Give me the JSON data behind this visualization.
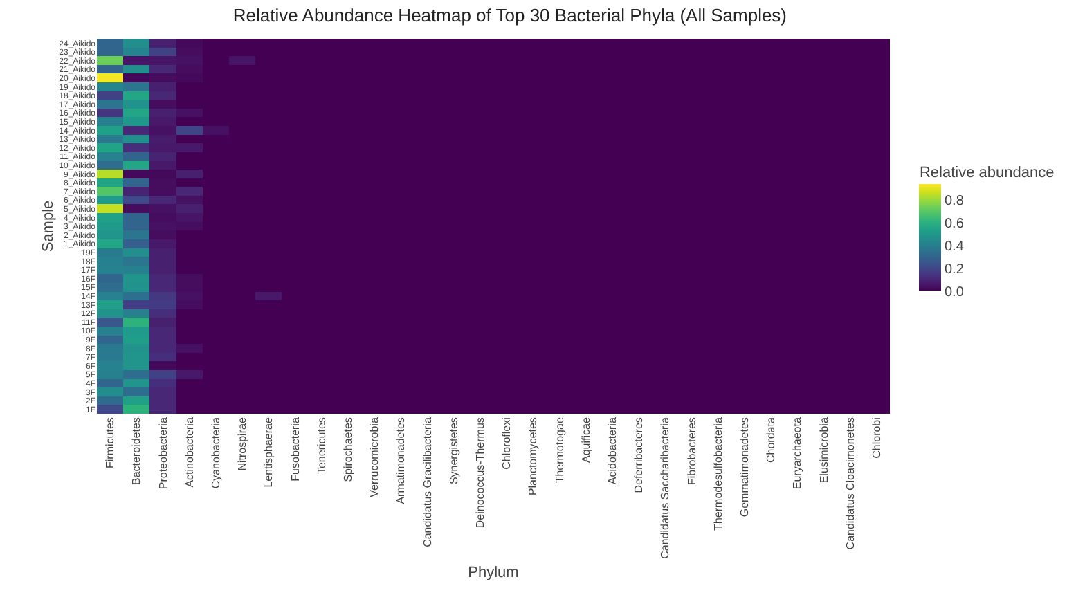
{
  "chart_data": {
    "type": "heatmap",
    "title": "Relative Abundance Heatmap of Top 30 Bacterial Phyla (All Samples)",
    "xlabel": "Phylum",
    "ylabel": "Sample",
    "clabel": "Relative abundance",
    "categories": [
      "Firmicutes",
      "Bacteroidetes",
      "Proteobacteria",
      "Actinobacteria",
      "Cyanobacteria",
      "Nitrospirae",
      "Lentisphaerae",
      "Fusobacteria",
      "Tenericutes",
      "Spirochaetes",
      "Verrucomicrobia",
      "Armatimonadetes",
      "Candidatus Gracilibacteria",
      "Synergistetes",
      "Deinococcus-Thermus",
      "Chloroflexi",
      "Planctomycetes",
      "Thermotogae",
      "Aquificae",
      "Acidobacteria",
      "Deferribacteres",
      "Candidatus Saccharibacteria",
      "Fibrobacteres",
      "Thermodesulfobacteria",
      "Gemmatimonadetes",
      "Chordata",
      "Euryarchaeota",
      "Elusimicrobia",
      "Candidatus Cloacimonetes",
      "Chlorobi"
    ],
    "y_categories": [
      "24_Aikido",
      "23_Aikido",
      "22_Aikido",
      "21_Aikido",
      "20_Aikido",
      "19_Aikido",
      "18_Aikido",
      "17_Aikido",
      "16_Aikido",
      "15_Aikido",
      "14_Aikido",
      "13_Aikido",
      "12_Aikido",
      "11_Aikido",
      "10_Aikido",
      "9_Aikido",
      "8_Aikido",
      "7_Aikido",
      "6_Aikido",
      "5_Aikido",
      "4_Aikido",
      "3_Aikido",
      "2_Aikido",
      "1_Aikido",
      "19F",
      "18F",
      "17F",
      "16F",
      "15F",
      "14F",
      "13F",
      "12F",
      "11F",
      "10F",
      "9F",
      "8F",
      "7F",
      "6F",
      "5F",
      "4F",
      "3F",
      "2F",
      "1F"
    ],
    "cells": [
      [
        0.3,
        0.46,
        0.08,
        0.02,
        0,
        0,
        0,
        0,
        0,
        0,
        0,
        0,
        0,
        0,
        0,
        0,
        0,
        0,
        0,
        0,
        0,
        0,
        0,
        0,
        0,
        0,
        0,
        0,
        0,
        0
      ],
      [
        0.3,
        0.42,
        0.18,
        0.03,
        0,
        0,
        0,
        0,
        0,
        0,
        0,
        0,
        0,
        0,
        0,
        0,
        0,
        0,
        0,
        0,
        0,
        0,
        0,
        0,
        0,
        0,
        0,
        0,
        0,
        0
      ],
      [
        0.72,
        0.05,
        0.05,
        0.04,
        0,
        0.05,
        0,
        0,
        0,
        0,
        0,
        0,
        0,
        0,
        0,
        0,
        0,
        0,
        0,
        0,
        0,
        0,
        0,
        0,
        0,
        0,
        0,
        0,
        0,
        0
      ],
      [
        0.3,
        0.46,
        0.1,
        0.03,
        0,
        0,
        0,
        0,
        0,
        0,
        0,
        0,
        0,
        0,
        0,
        0,
        0,
        0,
        0,
        0,
        0,
        0,
        0,
        0,
        0,
        0,
        0,
        0,
        0,
        0
      ],
      [
        0.92,
        0.02,
        0.03,
        0.02,
        0,
        0,
        0,
        0,
        0,
        0,
        0,
        0,
        0,
        0,
        0,
        0,
        0,
        0,
        0,
        0,
        0,
        0,
        0,
        0,
        0,
        0,
        0,
        0,
        0,
        0
      ],
      [
        0.42,
        0.36,
        0.08,
        0,
        0,
        0,
        0,
        0,
        0,
        0,
        0,
        0,
        0,
        0,
        0,
        0,
        0,
        0,
        0,
        0,
        0,
        0,
        0,
        0,
        0,
        0,
        0,
        0,
        0,
        0
      ],
      [
        0.18,
        0.55,
        0.1,
        0,
        0,
        0,
        0,
        0,
        0,
        0,
        0,
        0,
        0,
        0,
        0,
        0,
        0,
        0,
        0,
        0,
        0,
        0,
        0,
        0,
        0,
        0,
        0,
        0,
        0,
        0
      ],
      [
        0.36,
        0.47,
        0.03,
        0,
        0,
        0,
        0,
        0,
        0,
        0,
        0,
        0,
        0,
        0,
        0,
        0,
        0,
        0,
        0,
        0,
        0,
        0,
        0,
        0,
        0,
        0,
        0,
        0,
        0,
        0
      ],
      [
        0.14,
        0.55,
        0.08,
        0.04,
        0,
        0,
        0,
        0,
        0,
        0,
        0,
        0,
        0,
        0,
        0,
        0,
        0,
        0,
        0,
        0,
        0,
        0,
        0,
        0,
        0,
        0,
        0,
        0,
        0,
        0
      ],
      [
        0.4,
        0.49,
        0.06,
        0,
        0,
        0,
        0,
        0,
        0,
        0,
        0,
        0,
        0,
        0,
        0,
        0,
        0,
        0,
        0,
        0,
        0,
        0,
        0,
        0,
        0,
        0,
        0,
        0,
        0,
        0
      ],
      [
        0.53,
        0.1,
        0.04,
        0.19,
        0.04,
        0,
        0,
        0,
        0,
        0,
        0,
        0,
        0,
        0,
        0,
        0,
        0,
        0,
        0,
        0,
        0,
        0,
        0,
        0,
        0,
        0,
        0,
        0,
        0,
        0
      ],
      [
        0.38,
        0.46,
        0.07,
        0,
        0,
        0,
        0,
        0,
        0,
        0,
        0,
        0,
        0,
        0,
        0,
        0,
        0,
        0,
        0,
        0,
        0,
        0,
        0,
        0,
        0,
        0,
        0,
        0,
        0,
        0
      ],
      [
        0.54,
        0.12,
        0.06,
        0.06,
        0,
        0,
        0,
        0,
        0,
        0,
        0,
        0,
        0,
        0,
        0,
        0,
        0,
        0,
        0,
        0,
        0,
        0,
        0,
        0,
        0,
        0,
        0,
        0,
        0,
        0
      ],
      [
        0.41,
        0.3,
        0.09,
        0,
        0,
        0,
        0,
        0,
        0,
        0,
        0,
        0,
        0,
        0,
        0,
        0,
        0,
        0,
        0,
        0,
        0,
        0,
        0,
        0,
        0,
        0,
        0,
        0,
        0,
        0
      ],
      [
        0.33,
        0.55,
        0.06,
        0,
        0,
        0,
        0,
        0,
        0,
        0,
        0,
        0,
        0,
        0,
        0,
        0,
        0,
        0,
        0,
        0,
        0,
        0,
        0,
        0,
        0,
        0,
        0,
        0,
        0,
        0
      ],
      [
        0.83,
        0.02,
        0.02,
        0.08,
        0,
        0,
        0,
        0,
        0,
        0,
        0,
        0,
        0,
        0,
        0,
        0,
        0,
        0,
        0,
        0,
        0,
        0,
        0,
        0,
        0,
        0,
        0,
        0,
        0,
        0
      ],
      [
        0.54,
        0.3,
        0.03,
        0,
        0,
        0,
        0,
        0,
        0,
        0,
        0,
        0,
        0,
        0,
        0,
        0,
        0,
        0,
        0,
        0,
        0,
        0,
        0,
        0,
        0,
        0,
        0,
        0,
        0,
        0
      ],
      [
        0.68,
        0.09,
        0.03,
        0.1,
        0,
        0,
        0,
        0,
        0,
        0,
        0,
        0,
        0,
        0,
        0,
        0,
        0,
        0,
        0,
        0,
        0,
        0,
        0,
        0,
        0,
        0,
        0,
        0,
        0,
        0
      ],
      [
        0.5,
        0.2,
        0.1,
        0.04,
        0,
        0,
        0,
        0,
        0,
        0,
        0,
        0,
        0,
        0,
        0,
        0,
        0,
        0,
        0,
        0,
        0,
        0,
        0,
        0,
        0,
        0,
        0,
        0,
        0,
        0
      ],
      [
        0.85,
        0.03,
        0.04,
        0.08,
        0,
        0,
        0,
        0,
        0,
        0,
        0,
        0,
        0,
        0,
        0,
        0,
        0,
        0,
        0,
        0,
        0,
        0,
        0,
        0,
        0,
        0,
        0,
        0,
        0,
        0
      ],
      [
        0.53,
        0.3,
        0.03,
        0.05,
        0,
        0,
        0,
        0,
        0,
        0,
        0,
        0,
        0,
        0,
        0,
        0,
        0,
        0,
        0,
        0,
        0,
        0,
        0,
        0,
        0,
        0,
        0,
        0,
        0,
        0
      ],
      [
        0.5,
        0.3,
        0.04,
        0.03,
        0,
        0,
        0,
        0,
        0,
        0,
        0,
        0,
        0,
        0,
        0,
        0,
        0,
        0,
        0,
        0,
        0,
        0,
        0,
        0,
        0,
        0,
        0,
        0,
        0,
        0
      ],
      [
        0.48,
        0.36,
        0.03,
        0,
        0,
        0,
        0,
        0,
        0,
        0,
        0,
        0,
        0,
        0,
        0,
        0,
        0,
        0,
        0,
        0,
        0,
        0,
        0,
        0,
        0,
        0,
        0,
        0,
        0,
        0
      ],
      [
        0.55,
        0.28,
        0.06,
        0,
        0,
        0,
        0,
        0,
        0,
        0,
        0,
        0,
        0,
        0,
        0,
        0,
        0,
        0,
        0,
        0,
        0,
        0,
        0,
        0,
        0,
        0,
        0,
        0,
        0,
        0
      ],
      [
        0.38,
        0.46,
        0.08,
        0,
        0,
        0,
        0,
        0,
        0,
        0,
        0,
        0,
        0,
        0,
        0,
        0,
        0,
        0,
        0,
        0,
        0,
        0,
        0,
        0,
        0,
        0,
        0,
        0,
        0,
        0
      ],
      [
        0.4,
        0.36,
        0.08,
        0,
        0,
        0,
        0,
        0,
        0,
        0,
        0,
        0,
        0,
        0,
        0,
        0,
        0,
        0,
        0,
        0,
        0,
        0,
        0,
        0,
        0,
        0,
        0,
        0,
        0,
        0
      ],
      [
        0.41,
        0.4,
        0.08,
        0,
        0,
        0,
        0,
        0,
        0,
        0,
        0,
        0,
        0,
        0,
        0,
        0,
        0,
        0,
        0,
        0,
        0,
        0,
        0,
        0,
        0,
        0,
        0,
        0,
        0,
        0
      ],
      [
        0.3,
        0.48,
        0.1,
        0.03,
        0,
        0,
        0,
        0,
        0,
        0,
        0,
        0,
        0,
        0,
        0,
        0,
        0,
        0,
        0,
        0,
        0,
        0,
        0,
        0,
        0,
        0,
        0,
        0,
        0,
        0
      ],
      [
        0.33,
        0.47,
        0.1,
        0.03,
        0,
        0,
        0,
        0,
        0,
        0,
        0,
        0,
        0,
        0,
        0,
        0,
        0,
        0,
        0,
        0,
        0,
        0,
        0,
        0,
        0,
        0,
        0,
        0,
        0,
        0
      ],
      [
        0.41,
        0.34,
        0.15,
        0.04,
        0,
        0,
        0.06,
        0,
        0,
        0,
        0,
        0,
        0,
        0,
        0,
        0,
        0,
        0,
        0,
        0,
        0,
        0,
        0,
        0,
        0,
        0,
        0,
        0,
        0,
        0
      ],
      [
        0.53,
        0.17,
        0.16,
        0.03,
        0,
        0,
        0,
        0,
        0,
        0,
        0,
        0,
        0,
        0,
        0,
        0,
        0,
        0,
        0,
        0,
        0,
        0,
        0,
        0,
        0,
        0,
        0,
        0,
        0,
        0
      ],
      [
        0.47,
        0.4,
        0.12,
        0,
        0,
        0,
        0,
        0,
        0,
        0,
        0,
        0,
        0,
        0,
        0,
        0,
        0,
        0,
        0,
        0,
        0,
        0,
        0,
        0,
        0,
        0,
        0,
        0,
        0,
        0
      ],
      [
        0.25,
        0.6,
        0.08,
        0,
        0,
        0,
        0,
        0,
        0,
        0,
        0,
        0,
        0,
        0,
        0,
        0,
        0,
        0,
        0,
        0,
        0,
        0,
        0,
        0,
        0,
        0,
        0,
        0,
        0,
        0
      ],
      [
        0.4,
        0.5,
        0.1,
        0,
        0,
        0,
        0,
        0,
        0,
        0,
        0,
        0,
        0,
        0,
        0,
        0,
        0,
        0,
        0,
        0,
        0,
        0,
        0,
        0,
        0,
        0,
        0,
        0,
        0,
        0
      ],
      [
        0.3,
        0.52,
        0.1,
        0,
        0,
        0,
        0,
        0,
        0,
        0,
        0,
        0,
        0,
        0,
        0,
        0,
        0,
        0,
        0,
        0,
        0,
        0,
        0,
        0,
        0,
        0,
        0,
        0,
        0,
        0
      ],
      [
        0.38,
        0.47,
        0.1,
        0.04,
        0,
        0,
        0,
        0,
        0,
        0,
        0,
        0,
        0,
        0,
        0,
        0,
        0,
        0,
        0,
        0,
        0,
        0,
        0,
        0,
        0,
        0,
        0,
        0,
        0,
        0
      ],
      [
        0.38,
        0.48,
        0.12,
        0,
        0,
        0,
        0,
        0,
        0,
        0,
        0,
        0,
        0,
        0,
        0,
        0,
        0,
        0,
        0,
        0,
        0,
        0,
        0,
        0,
        0,
        0,
        0,
        0,
        0,
        0
      ],
      [
        0.41,
        0.48,
        0.02,
        0,
        0,
        0,
        0,
        0,
        0,
        0,
        0,
        0,
        0,
        0,
        0,
        0,
        0,
        0,
        0,
        0,
        0,
        0,
        0,
        0,
        0,
        0,
        0,
        0,
        0,
        0
      ],
      [
        0.4,
        0.33,
        0.18,
        0.06,
        0,
        0,
        0,
        0,
        0,
        0,
        0,
        0,
        0,
        0,
        0,
        0,
        0,
        0,
        0,
        0,
        0,
        0,
        0,
        0,
        0,
        0,
        0,
        0,
        0,
        0
      ],
      [
        0.3,
        0.48,
        0.12,
        0,
        0,
        0,
        0,
        0,
        0,
        0,
        0,
        0,
        0,
        0,
        0,
        0,
        0,
        0,
        0,
        0,
        0,
        0,
        0,
        0,
        0,
        0,
        0,
        0,
        0,
        0
      ],
      [
        0.45,
        0.33,
        0.1,
        0,
        0,
        0,
        0,
        0,
        0,
        0,
        0,
        0,
        0,
        0,
        0,
        0,
        0,
        0,
        0,
        0,
        0,
        0,
        0,
        0,
        0,
        0,
        0,
        0,
        0,
        0
      ],
      [
        0.32,
        0.53,
        0.1,
        0,
        0,
        0,
        0,
        0,
        0,
        0,
        0,
        0,
        0,
        0,
        0,
        0,
        0,
        0,
        0,
        0,
        0,
        0,
        0,
        0,
        0,
        0,
        0,
        0,
        0,
        0
      ],
      [
        0.2,
        0.6,
        0.1,
        0,
        0,
        0,
        0,
        0,
        0,
        0,
        0,
        0,
        0,
        0,
        0,
        0,
        0,
        0,
        0,
        0,
        0,
        0,
        0,
        0,
        0,
        0,
        0,
        0,
        0,
        0
      ]
    ],
    "clim": [
      0,
      0.93
    ],
    "cticks": [
      {
        "value": 0,
        "label": "0.0"
      },
      {
        "value": 0.2,
        "label": "0.2"
      },
      {
        "value": 0.4,
        "label": "0.4"
      },
      {
        "value": 0.6,
        "label": "0.6"
      },
      {
        "value": 0.8,
        "label": "0.8"
      }
    ]
  }
}
